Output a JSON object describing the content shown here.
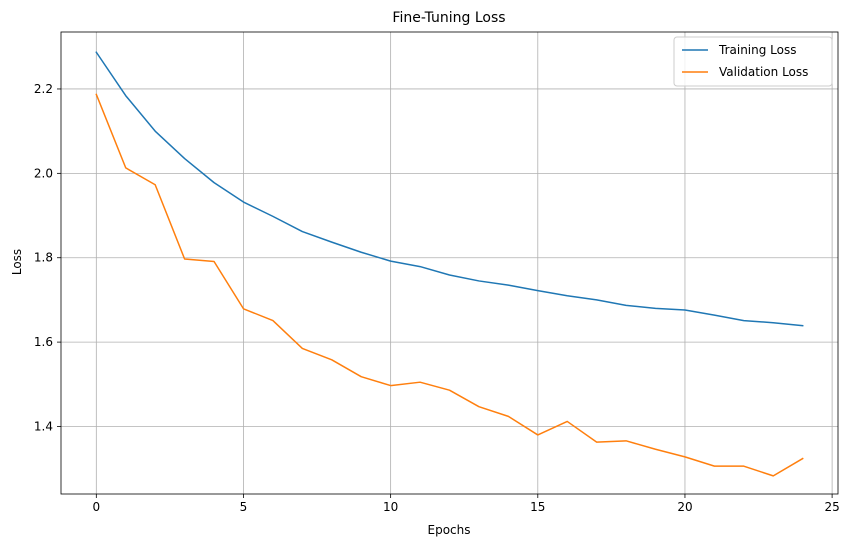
{
  "chart_data": {
    "type": "line",
    "title": "Fine-Tuning Loss",
    "xlabel": "Epochs",
    "ylabel": "Loss",
    "xlim": [
      -1.2,
      25.2
    ],
    "ylim": [
      1.24,
      2.335
    ],
    "xticks": [
      0,
      5,
      10,
      15,
      20,
      25
    ],
    "yticks": [
      1.4,
      1.6,
      1.8,
      2.0,
      2.2
    ],
    "yticks_labels": [
      "1.4",
      "1.6",
      "1.8",
      "2.0",
      "2.2"
    ],
    "grid": true,
    "legend_position": "top-right",
    "x": [
      0,
      1,
      2,
      3,
      4,
      5,
      6,
      7,
      8,
      9,
      10,
      11,
      12,
      13,
      14,
      15,
      16,
      17,
      18,
      19,
      20,
      21,
      22,
      23,
      24
    ],
    "series": [
      {
        "name": "Training Loss",
        "color": "#1f77b4",
        "values": [
          2.287,
          2.184,
          2.1,
          2.035,
          1.978,
          1.932,
          1.898,
          1.862,
          1.837,
          1.813,
          1.792,
          1.779,
          1.759,
          1.745,
          1.735,
          1.722,
          1.71,
          1.7,
          1.687,
          1.68,
          1.676,
          1.664,
          1.651,
          1.646,
          1.639
        ]
      },
      {
        "name": "Validation Loss",
        "color": "#ff7f0e",
        "values": [
          2.187,
          2.013,
          1.973,
          1.797,
          1.791,
          1.679,
          1.651,
          1.585,
          1.558,
          1.518,
          1.497,
          1.505,
          1.486,
          1.447,
          1.424,
          1.38,
          1.412,
          1.363,
          1.366,
          1.346,
          1.328,
          1.306,
          1.306,
          1.283,
          1.324
        ]
      }
    ]
  }
}
